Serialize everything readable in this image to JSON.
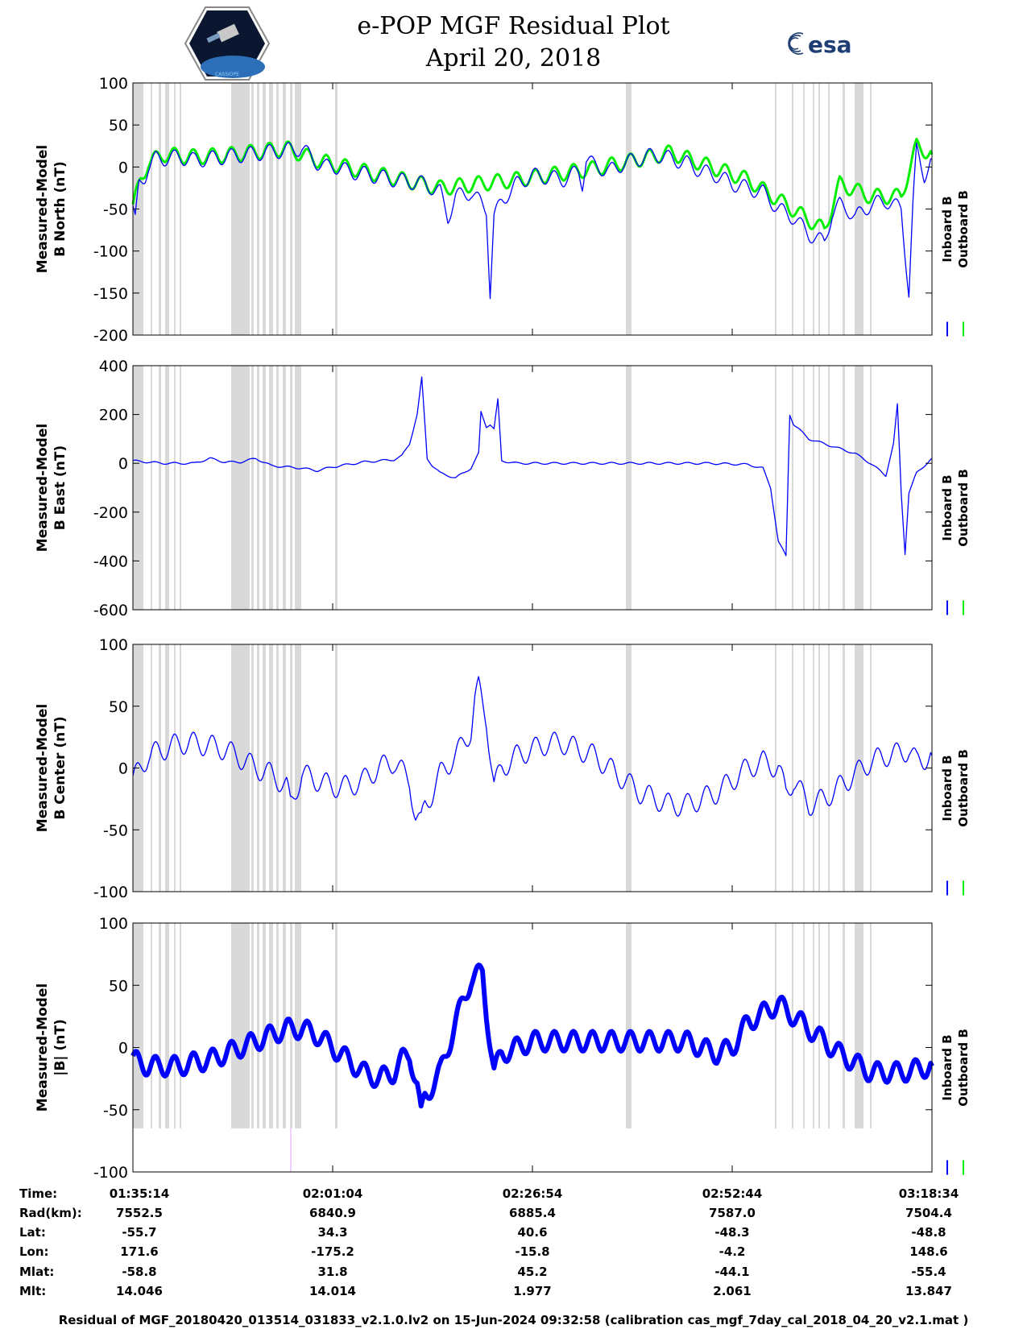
{
  "header": {
    "title": "e-POP MGF Residual Plot",
    "date": "April 20, 2018",
    "left_logo": "CASSIOPE satellite mission patch",
    "right_logo_text": "esa"
  },
  "chart_data": [
    {
      "type": "line",
      "ylabel": [
        "Measured-Model",
        "B North (nT)"
      ],
      "ylim": [
        -200,
        100
      ],
      "yticks": [
        100,
        50,
        0,
        -50,
        -100,
        -150,
        -200
      ],
      "legend": [
        "Inboard B",
        "Outboard B"
      ],
      "legend_colors": [
        "#0000ff",
        "#00ee00"
      ],
      "x_time_min": [
        0,
        104
      ],
      "series": [
        {
          "name": "Inboard B",
          "x": [
            0,
            0.3,
            0.8,
            1.6,
            2,
            3,
            4,
            6,
            8,
            10,
            12,
            15,
            18,
            20,
            22,
            24,
            25,
            26,
            28,
            30,
            34,
            38,
            40,
            41,
            42,
            44,
            45.5,
            46,
            46.5,
            47,
            48,
            50,
            52,
            54,
            56,
            57,
            58,
            58.5,
            59,
            60,
            62,
            64,
            66,
            68,
            70,
            72,
            74,
            76,
            78,
            80,
            82,
            84,
            86,
            88,
            90,
            91,
            92,
            93,
            94,
            96,
            98,
            100,
            101,
            101.5,
            102,
            103,
            104
          ],
          "values": [
            -50,
            -65,
            -20,
            -10,
            0,
            10,
            10,
            12,
            8,
            10,
            12,
            15,
            18,
            20,
            22,
            5,
            0,
            2,
            -5,
            -8,
            -15,
            -20,
            -30,
            -60,
            -35,
            -30,
            -45,
            -50,
            -150,
            -60,
            -40,
            -20,
            -10,
            -12,
            -15,
            -10,
            -5,
            -20,
            10,
            2,
            -5,
            5,
            10,
            15,
            10,
            5,
            -5,
            -10,
            -20,
            -25,
            -30,
            -50,
            -60,
            -80,
            -90,
            -55,
            -45,
            -50,
            -60,
            -45,
            -40,
            -50,
            -150,
            -50,
            20,
            -10,
            10
          ]
        },
        {
          "name": "Outboard B",
          "x": [
            0,
            1,
            2,
            4,
            8,
            12,
            16,
            20,
            24,
            30,
            40,
            50,
            60,
            70,
            80,
            90,
            92,
            96,
            100,
            102,
            104
          ],
          "values": [
            -48,
            -15,
            5,
            15,
            12,
            14,
            18,
            22,
            8,
            -5,
            -25,
            -15,
            -2,
            17,
            -15,
            -75,
            -20,
            -35,
            -35,
            25,
            15
          ]
        }
      ]
    },
    {
      "type": "line",
      "ylabel": [
        "Measured-Model",
        "B East (nT)"
      ],
      "ylim": [
        -600,
        400
      ],
      "yticks": [
        400,
        200,
        0,
        -200,
        -400,
        -600
      ],
      "legend": [
        "Inboard B",
        "Outboard B"
      ],
      "legend_colors": [
        "#0000ff",
        "#00ee00"
      ],
      "x_time_min": [
        0,
        104
      ],
      "series": [
        {
          "name": "Inboard B",
          "x": [
            0,
            2,
            4,
            6,
            8,
            10,
            12,
            14,
            16,
            18,
            20,
            22,
            24,
            26,
            28,
            30,
            32,
            34,
            35,
            36,
            37,
            37.6,
            38.3,
            39,
            40,
            42,
            44,
            45,
            45.3,
            46,
            46.5,
            47,
            47.5,
            48,
            50,
            55,
            60,
            65,
            70,
            75,
            80,
            82,
            83,
            84,
            85,
            85.5,
            86,
            88,
            90,
            92,
            94,
            96,
            98,
            99,
            99.5,
            100,
            100.5,
            101,
            102,
            104
          ],
          "values": [
            10,
            5,
            0,
            0,
            0,
            20,
            5,
            5,
            20,
            -10,
            -15,
            -20,
            -30,
            -15,
            -5,
            5,
            10,
            15,
            30,
            80,
            200,
            350,
            20,
            -10,
            -40,
            -60,
            -20,
            40,
            210,
            150,
            160,
            140,
            260,
            10,
            0,
            0,
            0,
            0,
            0,
            0,
            -5,
            -20,
            -100,
            -320,
            -380,
            200,
            160,
            100,
            80,
            60,
            40,
            0,
            -50,
            80,
            240,
            -120,
            -370,
            -120,
            -40,
            20
          ]
        }
      ]
    },
    {
      "type": "line",
      "ylabel": [
        "Measured-Model",
        "B Center (nT)"
      ],
      "ylim": [
        -100,
        100
      ],
      "yticks": [
        100,
        50,
        0,
        -50,
        -100
      ],
      "legend": [
        "Inboard B",
        "Outboard B"
      ],
      "legend_colors": [
        "#0000ff",
        "#00ee00"
      ],
      "x_time_min": [
        0,
        104
      ],
      "series": [
        {
          "name": "Inboard B",
          "x": [
            0,
            1,
            2,
            4,
            6,
            8,
            10,
            12,
            14,
            16,
            18,
            20,
            20.5,
            22,
            24,
            26,
            28,
            30,
            32,
            34,
            36,
            36.8,
            37.5,
            38,
            39,
            40,
            42,
            44,
            44.5,
            45,
            46,
            47,
            48,
            50,
            52,
            54,
            56,
            58,
            60,
            62,
            64,
            65,
            66,
            68,
            70,
            72,
            74,
            76,
            78,
            80,
            82,
            84,
            85,
            86,
            88,
            90,
            92,
            94,
            96,
            98,
            100,
            101,
            102,
            104
          ],
          "values": [
            -10,
            0,
            10,
            15,
            20,
            20,
            18,
            15,
            8,
            0,
            -5,
            -15,
            -30,
            -5,
            -10,
            -15,
            -15,
            -10,
            0,
            5,
            -10,
            -40,
            -45,
            -30,
            -20,
            -5,
            10,
            30,
            55,
            65,
            40,
            -15,
            0,
            10,
            15,
            20,
            20,
            15,
            10,
            0,
            -10,
            -15,
            -20,
            -25,
            -30,
            -30,
            -25,
            -20,
            -10,
            0,
            5,
            0,
            -20,
            -10,
            -30,
            -25,
            -15,
            -5,
            5,
            10,
            12,
            15,
            5,
            10
          ]
        }
      ]
    },
    {
      "type": "line",
      "ylabel": [
        "Measured-Model",
        "|B| (nT)"
      ],
      "ylim": [
        -100,
        100
      ],
      "yticks": [
        100,
        50,
        0,
        -50,
        -100
      ],
      "legend": [
        "Inboard B",
        "Outboard B"
      ],
      "legend_colors": [
        "#0000ff",
        "#00ee00"
      ],
      "x_time_min": [
        0,
        104
      ],
      "series": [
        {
          "name": "Inboard B",
          "x": [
            0,
            2,
            4,
            6,
            8,
            10,
            12,
            14,
            16,
            18,
            20,
            22,
            24,
            26,
            28,
            30,
            32,
            34,
            35,
            36,
            37,
            37.5,
            38,
            39,
            40,
            41,
            42,
            44,
            45.5,
            46,
            47,
            48,
            50,
            52,
            56,
            60,
            64,
            68,
            70,
            72,
            74,
            76,
            78,
            80,
            84,
            88,
            92,
            96,
            100,
            104
          ],
          "values": [
            -10,
            -15,
            -15,
            -15,
            -12,
            -10,
            -5,
            0,
            5,
            10,
            15,
            15,
            10,
            0,
            -10,
            -20,
            -25,
            -20,
            -10,
            -5,
            -30,
            -55,
            -40,
            -30,
            -20,
            0,
            20,
            55,
            60,
            30,
            -20,
            -5,
            0,
            5,
            5,
            5,
            5,
            5,
            5,
            5,
            0,
            -5,
            0,
            20,
            35,
            15,
            -5,
            -20,
            -20,
            -15
          ]
        }
      ]
    }
  ],
  "time_axis": {
    "tick_times": [
      "01:35:14",
      "02:01:04",
      "02:26:54",
      "02:52:44",
      "03:18:34"
    ]
  },
  "ephemeris": {
    "rows": [
      {
        "label": "Time:",
        "values": [
          "01:35:14",
          "02:01:04",
          "02:26:54",
          "02:52:44",
          "03:18:34"
        ]
      },
      {
        "label": "Rad(km):",
        "values": [
          "7552.5",
          "6840.9",
          "6885.4",
          "7587.0",
          "7504.4"
        ]
      },
      {
        "label": "Lat:",
        "values": [
          "-55.7",
          "34.3",
          "40.6",
          "-48.3",
          "-48.8"
        ]
      },
      {
        "label": "Lon:",
        "values": [
          "171.6",
          "-175.2",
          "-15.8",
          "-4.2",
          "148.6"
        ]
      },
      {
        "label": "Mlat:",
        "values": [
          "-58.8",
          "31.8",
          "45.2",
          "-44.1",
          "-55.4"
        ]
      },
      {
        "label": "Mlt:",
        "values": [
          "14.046",
          "14.014",
          "1.977",
          "2.061",
          "13.847"
        ]
      }
    ]
  },
  "footer": "Residual of MGF_20180420_013514_031833_v2.1.0.lv2 on 15-Jun-2024 09:32:58 (calibration cas_mgf_7day_cal_2018_04_20_v2.1.mat )"
}
